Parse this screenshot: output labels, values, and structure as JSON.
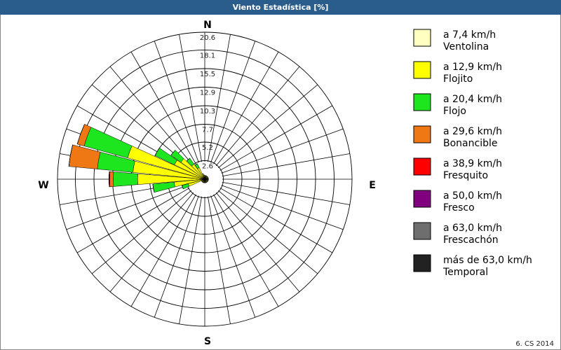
{
  "chart_data": {
    "type": "windrose",
    "title": "Viento Estadística [%]",
    "footer": "6. CS 2014",
    "compass": [
      "N",
      "E",
      "S",
      "W"
    ],
    "x": [
      0,
      10,
      20,
      30,
      40,
      50,
      60,
      70,
      80,
      90,
      100,
      110,
      120,
      130,
      140,
      150,
      160,
      170,
      180,
      190,
      200,
      210,
      220,
      230,
      240,
      250,
      260,
      270,
      280,
      290,
      300,
      310,
      320,
      330,
      340,
      350
    ],
    "ylim": [
      0,
      20.6
    ],
    "yticks": [
      2.6,
      5.2,
      7.7,
      10.3,
      12.9,
      15.5,
      18.1,
      20.6
    ],
    "series": [
      {
        "name": "a 7,4 km/h",
        "description": "Ventolina",
        "color": "#ffffc0",
        "values": [
          0.2,
          0.2,
          0.2,
          0.2,
          0.2,
          0.2,
          0.2,
          0.2,
          0.2,
          0.2,
          0.2,
          0.2,
          0.2,
          0.2,
          0.2,
          0.2,
          0.2,
          0.2,
          0.2,
          0.2,
          0.2,
          0.2,
          0.2,
          0.2,
          0.2,
          0.4,
          0.4,
          0.5,
          0.5,
          0.5,
          0.4,
          0.4,
          0.4,
          0.3,
          0.2,
          0.2
        ]
      },
      {
        "name": "a 12,9 km/h",
        "description": "Flojito",
        "color": "#ffff00",
        "values": [
          0.3,
          0.3,
          0.3,
          0.3,
          0.3,
          0.3,
          0.3,
          0.3,
          0.3,
          0.3,
          0.3,
          0.3,
          0.3,
          0.3,
          0.3,
          0.3,
          0.3,
          0.3,
          0.3,
          0.3,
          0.3,
          0.3,
          0.3,
          0.3,
          0.3,
          2.0,
          3.9,
          8.9,
          9.6,
          10.7,
          4.3,
          3.7,
          2.2,
          1.5,
          0.6,
          0.4
        ]
      },
      {
        "name": "a 20,4 km/h",
        "description": "Flojo",
        "color": "#1ee61e",
        "values": [
          0,
          0,
          0,
          0,
          0,
          0,
          0,
          0,
          0,
          0,
          0,
          0,
          0,
          0,
          0,
          0,
          0,
          0,
          0,
          0,
          0,
          0,
          0,
          0,
          0,
          0.9,
          3.0,
          3.4,
          5.0,
          6.3,
          3.0,
          1.7,
          1.0,
          0.6,
          0,
          0
        ]
      },
      {
        "name": "a 29,6 km/h",
        "description": "Bonancible",
        "color": "#f07814",
        "values": [
          0,
          0,
          0,
          0,
          0,
          0,
          0,
          0,
          0,
          0,
          0,
          0,
          0,
          0,
          0,
          0,
          0,
          0,
          0,
          0,
          0,
          0,
          0,
          0,
          0,
          0,
          0,
          0.5,
          4.0,
          1.0,
          0,
          0,
          0,
          0,
          0,
          0
        ]
      },
      {
        "name": "a 38,9 km/h",
        "description": "Fresquito",
        "color": "#ff0000",
        "values": [
          0,
          0,
          0,
          0,
          0,
          0,
          0,
          0,
          0,
          0,
          0,
          0,
          0,
          0,
          0,
          0,
          0,
          0,
          0,
          0,
          0,
          0,
          0,
          0,
          0,
          0,
          0,
          0.1,
          0,
          0,
          0,
          0,
          0,
          0,
          0,
          0
        ]
      },
      {
        "name": "a 50,0 km/h",
        "description": "Fresco",
        "color": "#800080",
        "values": [
          0,
          0,
          0,
          0,
          0,
          0,
          0,
          0,
          0,
          0,
          0,
          0,
          0,
          0,
          0,
          0,
          0,
          0,
          0,
          0,
          0,
          0,
          0,
          0,
          0,
          0,
          0,
          0,
          0,
          0,
          0,
          0,
          0,
          0,
          0,
          0
        ]
      },
      {
        "name": "a 63,0 km/h",
        "description": "Frescachón",
        "color": "#6e6e6e",
        "values": [
          0,
          0,
          0,
          0,
          0,
          0,
          0,
          0,
          0,
          0,
          0,
          0,
          0,
          0,
          0,
          0,
          0,
          0,
          0,
          0,
          0,
          0,
          0,
          0,
          0,
          0,
          0,
          0,
          0,
          0,
          0,
          0,
          0,
          0,
          0,
          0
        ]
      },
      {
        "name": "más de 63,0 km/h",
        "description": "Temporal",
        "color": "#222222",
        "values": [
          0,
          0,
          0,
          0,
          0,
          0,
          0,
          0,
          0,
          0,
          0,
          0,
          0,
          0,
          0,
          0,
          0,
          0,
          0,
          0,
          0,
          0,
          0,
          0,
          0,
          0,
          0,
          0,
          0,
          0,
          0,
          0,
          0,
          0,
          0,
          0
        ]
      }
    ]
  }
}
